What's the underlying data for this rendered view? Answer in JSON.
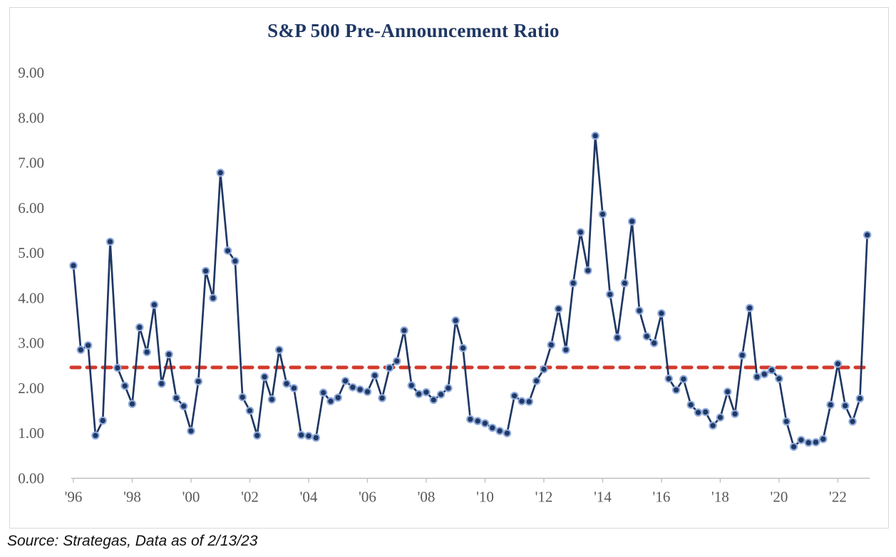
{
  "title": "S&P 500 Pre-Announcement Ratio",
  "source_note": "Source: Strategas, Data as of 2/13/23",
  "colors": {
    "title": "#1f3864",
    "line": "#1f3864",
    "marker_fill": "#1f3864",
    "marker_halo": "#8faadc",
    "average_line": "#d23a2c",
    "axis": "#bfbfbf",
    "tick_label": "#595959",
    "frame_border": "#d8d8d8",
    "background": "#ffffff"
  },
  "chart_data": {
    "type": "line",
    "title": "S&P 500 Pre-Announcement Ratio",
    "series_name": "S&P 500 Pre-Announcement Ratio (quarterly)",
    "xlabel": "",
    "ylabel": "",
    "ylim": [
      0,
      9
    ],
    "grid": false,
    "legend": false,
    "y_tick_labels": [
      "0.00",
      "1.00",
      "2.00",
      "3.00",
      "4.00",
      "5.00",
      "6.00",
      "7.00",
      "8.00",
      "9.00"
    ],
    "x_tick_labels": [
      "'96",
      "'98",
      "'00",
      "'02",
      "'04",
      "'06",
      "'08",
      "'10",
      "'12",
      "'14",
      "'16",
      "'18",
      "'20",
      "'22"
    ],
    "average_line_value": 2.46,
    "average_line_style": "dashed",
    "x_quarters": [
      "1996 Q1",
      "1996 Q2",
      "1996 Q3",
      "1996 Q4",
      "1997 Q1",
      "1997 Q2",
      "1997 Q3",
      "1997 Q4",
      "1998 Q1",
      "1998 Q2",
      "1998 Q3",
      "1998 Q4",
      "1999 Q1",
      "1999 Q2",
      "1999 Q3",
      "1999 Q4",
      "2000 Q1",
      "2000 Q2",
      "2000 Q3",
      "2000 Q4",
      "2001 Q1",
      "2001 Q2",
      "2001 Q3",
      "2001 Q4",
      "2002 Q1",
      "2002 Q2",
      "2002 Q3",
      "2002 Q4",
      "2003 Q1",
      "2003 Q2",
      "2003 Q3",
      "2003 Q4",
      "2004 Q1",
      "2004 Q2",
      "2004 Q3",
      "2004 Q4",
      "2005 Q1",
      "2005 Q2",
      "2005 Q3",
      "2005 Q4",
      "2006 Q1",
      "2006 Q2",
      "2006 Q3",
      "2006 Q4",
      "2007 Q1",
      "2007 Q2",
      "2007 Q3",
      "2007 Q4",
      "2008 Q1",
      "2008 Q2",
      "2008 Q3",
      "2008 Q4",
      "2009 Q1",
      "2009 Q2",
      "2009 Q3",
      "2009 Q4",
      "2010 Q1",
      "2010 Q2",
      "2010 Q3",
      "2010 Q4",
      "2011 Q1",
      "2011 Q2",
      "2011 Q3",
      "2011 Q4",
      "2012 Q1",
      "2012 Q2",
      "2012 Q3",
      "2012 Q4",
      "2013 Q1",
      "2013 Q2",
      "2013 Q3",
      "2013 Q4",
      "2014 Q1",
      "2014 Q2",
      "2014 Q3",
      "2014 Q4",
      "2015 Q1",
      "2015 Q2",
      "2015 Q3",
      "2015 Q4",
      "2016 Q1",
      "2016 Q2",
      "2016 Q3",
      "2016 Q4",
      "2017 Q1",
      "2017 Q2",
      "2017 Q3",
      "2017 Q4",
      "2018 Q1",
      "2018 Q2",
      "2018 Q3",
      "2018 Q4",
      "2019 Q1",
      "2019 Q2",
      "2019 Q3",
      "2019 Q4",
      "2020 Q1",
      "2020 Q2",
      "2020 Q3",
      "2020 Q4",
      "2021 Q1",
      "2021 Q2",
      "2021 Q3",
      "2021 Q4",
      "2022 Q1",
      "2022 Q2",
      "2022 Q3",
      "2022 Q4",
      "2023 Q1"
    ],
    "values": [
      4.72,
      2.85,
      2.95,
      0.95,
      1.28,
      5.25,
      2.45,
      2.05,
      1.65,
      3.35,
      2.8,
      3.85,
      2.1,
      2.75,
      1.78,
      1.6,
      1.05,
      2.15,
      4.6,
      4.0,
      6.78,
      5.05,
      4.82,
      1.8,
      1.5,
      0.95,
      2.25,
      1.75,
      2.85,
      2.1,
      2.0,
      0.96,
      0.94,
      0.9,
      1.9,
      1.71,
      1.79,
      2.16,
      2.02,
      1.97,
      1.92,
      2.28,
      1.78,
      2.45,
      2.6,
      3.28,
      2.06,
      1.87,
      1.91,
      1.74,
      1.86,
      2.0,
      3.5,
      2.89,
      1.31,
      1.27,
      1.22,
      1.12,
      1.05,
      1.0,
      1.83,
      1.71,
      1.7,
      2.16,
      2.42,
      2.96,
      3.76,
      2.85,
      4.33,
      5.46,
      4.61,
      7.6,
      5.86,
      4.08,
      3.12,
      4.33,
      5.7,
      3.72,
      3.15,
      3.0,
      3.66,
      2.21,
      1.96,
      2.2,
      1.63,
      1.46,
      1.47,
      1.17,
      1.35,
      1.92,
      1.43,
      2.73,
      3.78,
      2.25,
      2.31,
      2.4,
      2.21,
      1.26,
      0.7,
      0.85,
      0.79,
      0.8,
      0.87,
      1.63,
      2.54,
      1.61,
      1.26,
      1.77,
      5.4
    ]
  }
}
